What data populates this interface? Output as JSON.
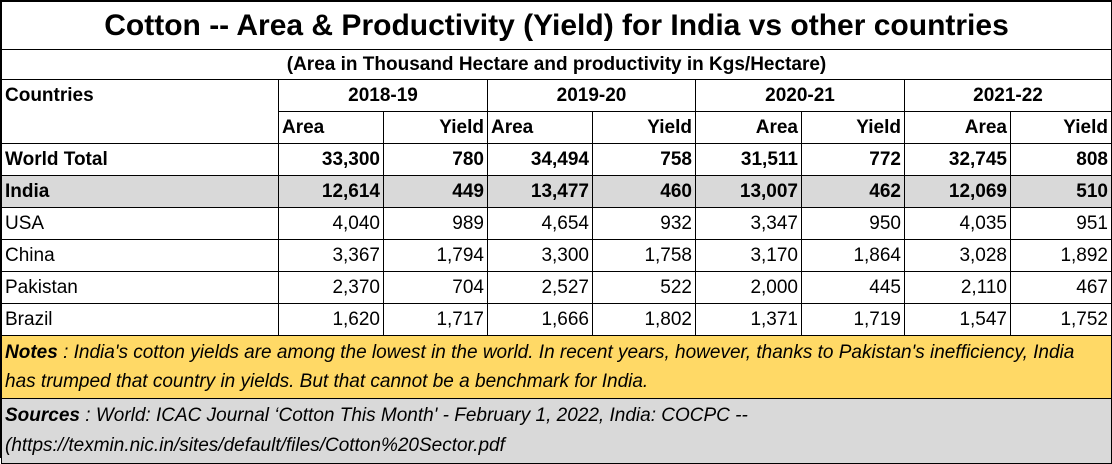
{
  "title": "Cotton -- Area & Productivity (Yield) for India vs other countries",
  "subtitle": "(Area in Thousand Hectare and productivity in Kgs/Hectare)",
  "header": {
    "countries_label": "Countries",
    "years": [
      "2018-19",
      "2019-20",
      "2020-21",
      "2021-22"
    ],
    "area_label": "Area",
    "yield_label": "Yield"
  },
  "rows": [
    {
      "country": "World Total",
      "values": [
        "33,300",
        "780",
        "34,494",
        "758",
        "31,511",
        "772",
        "32,745",
        "808"
      ]
    },
    {
      "country": "India",
      "values": [
        "12,614",
        "449",
        "13,477",
        "460",
        "13,007",
        "462",
        "12,069",
        "510"
      ]
    },
    {
      "country": "USA",
      "values": [
        "4,040",
        "989",
        "4,654",
        "932",
        "3,347",
        "950",
        "4,035",
        "951"
      ]
    },
    {
      "country": "China",
      "values": [
        "3,367",
        "1,794",
        "3,300",
        "1,758",
        "3,170",
        "1,864",
        "3,028",
        "1,892"
      ]
    },
    {
      "country": "Pakistan",
      "values": [
        "2,370",
        "704",
        "2,527",
        "522",
        "2,000",
        "445",
        "2,110",
        "467"
      ]
    },
    {
      "country": "Brazil",
      "values": [
        "1,620",
        "1,717",
        "1,666",
        "1,802",
        "1,371",
        "1,719",
        "1,547",
        "1,752"
      ]
    }
  ],
  "notes": {
    "label": "Notes",
    "text": " : India's cotton yields are among the lowest in the world. In recent years, however, thanks to Pakistan's inefficiency, India has trumped that country in yields.  But that cannot be a benchmark for India."
  },
  "sources": {
    "label": "Sources",
    "text": " : World: ICAC Journal ‘Cotton This Month' - February 1, 2022, India: COCPC -- (https://texmin.nic.in/sites/default/files/Cotton%20Sector.pdf"
  },
  "colors": {
    "notes_bg": "#ffd966",
    "india_row_bg": "#d9d9d9",
    "sources_bg": "#d9d9d9"
  }
}
